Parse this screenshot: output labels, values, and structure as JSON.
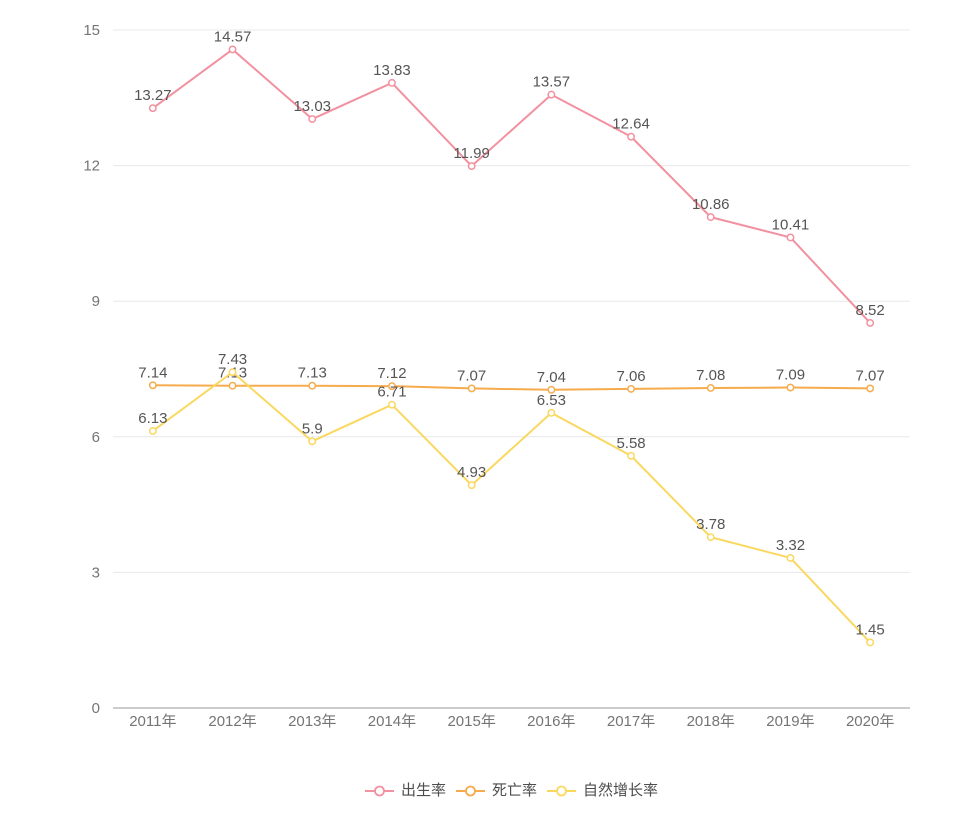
{
  "chart_data": {
    "type": "line",
    "categories": [
      "2011年",
      "2012年",
      "2013年",
      "2014年",
      "2015年",
      "2016年",
      "2017年",
      "2018年",
      "2019年",
      "2020年"
    ],
    "series": [
      {
        "id": "birth-rate",
        "name": "出生率",
        "color": "#f2919f",
        "values": [
          13.27,
          14.57,
          13.03,
          13.83,
          11.99,
          13.57,
          12.64,
          10.86,
          10.41,
          8.52
        ]
      },
      {
        "id": "death-rate",
        "name": "死亡率",
        "color": "#f6ac4d",
        "values": [
          7.14,
          7.13,
          7.13,
          7.12,
          7.07,
          7.04,
          7.06,
          7.08,
          7.09,
          7.07
        ]
      },
      {
        "id": "natural-growth-rate",
        "name": "自然增长率",
        "color": "#fad860",
        "values": [
          6.13,
          7.43,
          5.9,
          6.71,
          4.93,
          6.53,
          5.58,
          3.78,
          3.32,
          1.45
        ]
      }
    ],
    "title": "",
    "xlabel": "",
    "ylabel": "",
    "ylim": [
      0,
      15
    ],
    "yticks": [
      0,
      3,
      6,
      9,
      12,
      15
    ],
    "grid": true,
    "legend_position": "bottom",
    "marker": "hollow-circle",
    "data_labels": true
  },
  "style_colors": {
    "grid_line": "#e8e8e8",
    "axis_line": "#999999",
    "tick_text": "#757575",
    "data_label_text": "#555555",
    "legend_text": "#4d4d4d",
    "background": "#ffffff"
  }
}
